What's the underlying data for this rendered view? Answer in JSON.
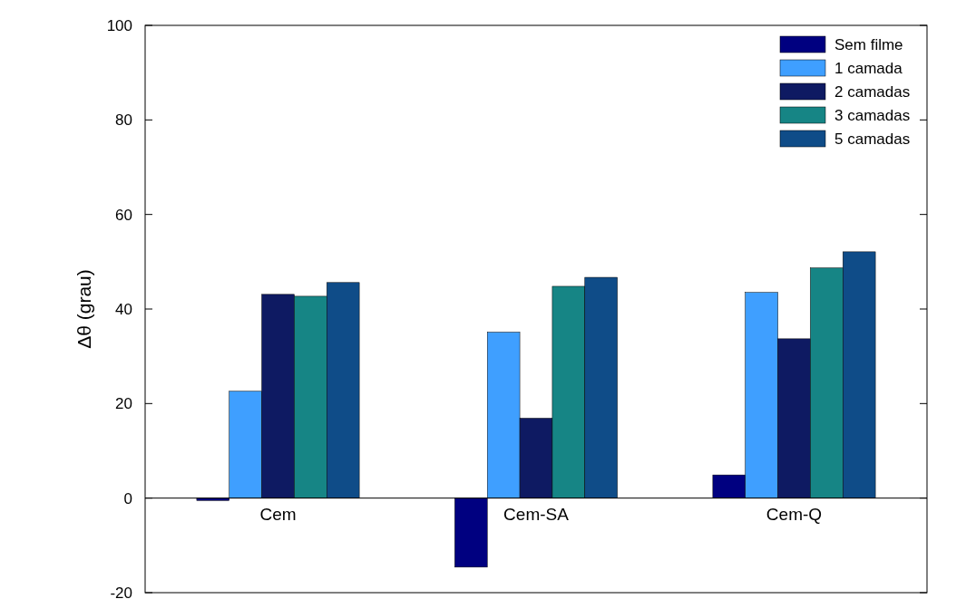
{
  "chart_data": {
    "type": "bar",
    "ylabel": "Δθ  (grau)",
    "categories": [
      "Cem",
      "Cem-SA",
      "Cem-Q"
    ],
    "series": [
      {
        "name": "Sem filme",
        "color": "#000080",
        "values": [
          -0.5,
          -14.6,
          4.9
        ]
      },
      {
        "name": "1 camada",
        "color": "#3f9fff",
        "values": [
          22.6,
          35.1,
          43.5
        ]
      },
      {
        "name": "2 camadas",
        "color": "#0e1a62",
        "values": [
          43.1,
          16.9,
          33.7
        ]
      },
      {
        "name": "3 camadas",
        "color": "#168585",
        "values": [
          42.7,
          44.8,
          48.7
        ]
      },
      {
        "name": "5 camadas",
        "color": "#0f4c88",
        "values": [
          45.6,
          46.7,
          52.1
        ]
      }
    ],
    "ylim": [
      -20,
      100
    ],
    "yticks": [
      -20,
      0,
      20,
      40,
      60,
      80,
      100
    ],
    "grid": false,
    "legend": "top right"
  }
}
